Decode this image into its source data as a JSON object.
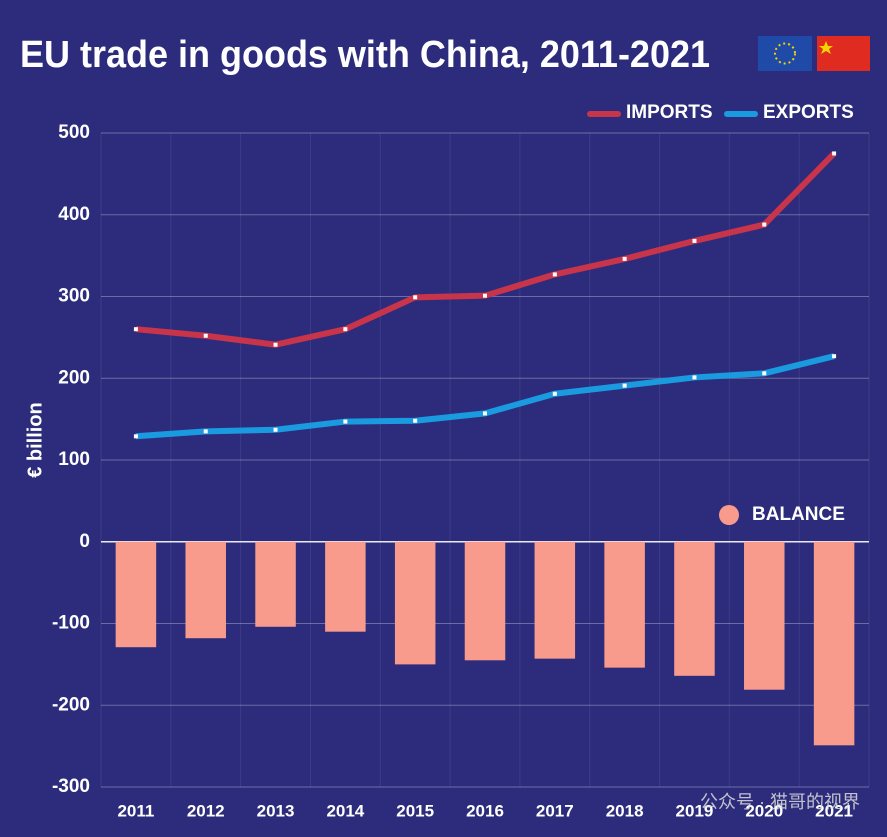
{
  "chart_data": {
    "type": "combo",
    "title": "EU trade in goods with China, 2011-2021",
    "y_label": "€ billion",
    "categories": [
      "2011",
      "2012",
      "2013",
      "2014",
      "2015",
      "2016",
      "2017",
      "2018",
      "2019",
      "2020",
      "2021"
    ],
    "series": [
      {
        "name": "IMPORTS",
        "type": "line",
        "color": "#c8344a",
        "values": [
          260,
          252,
          241,
          260,
          299,
          301,
          327,
          346,
          368,
          388,
          475
        ]
      },
      {
        "name": "EXPORTS",
        "type": "line",
        "color": "#1a9be0",
        "values": [
          129,
          135,
          137,
          147,
          148,
          157,
          181,
          191,
          201,
          206,
          227
        ]
      },
      {
        "name": "BALANCE",
        "type": "bar",
        "color": "#f99b8c",
        "values": [
          -129,
          -118,
          -104,
          -110,
          -150,
          -145,
          -143,
          -154,
          -164,
          -181,
          -249
        ]
      }
    ],
    "ylim": [
      -300,
      500
    ],
    "yticks": [
      -300,
      -200,
      -100,
      0,
      100,
      200,
      300,
      400,
      500
    ],
    "grid": true,
    "watermark": "公众号 · 猫哥的视界"
  }
}
